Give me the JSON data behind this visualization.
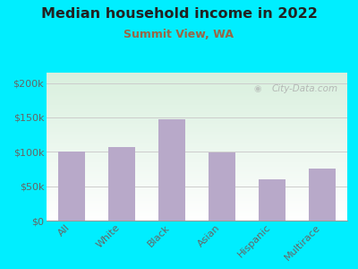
{
  "title": "Median household income in 2022",
  "subtitle": "Summit View, WA",
  "categories": [
    "All",
    "White",
    "Black",
    "Asian",
    "Hispanic",
    "Multirace"
  ],
  "values": [
    100000,
    107000,
    147000,
    99000,
    60000,
    76000
  ],
  "bar_color": "#b8a9c9",
  "background_outer": "#00eeff",
  "title_color": "#222222",
  "subtitle_color": "#996644",
  "tick_label_color": "#666666",
  "ylabel_ticks": [
    0,
    50000,
    100000,
    150000,
    200000
  ],
  "ylabel_labels": [
    "$0",
    "$50k",
    "$100k",
    "$150k",
    "$200k"
  ],
  "ylim": [
    0,
    215000
  ],
  "watermark": "City-Data.com"
}
